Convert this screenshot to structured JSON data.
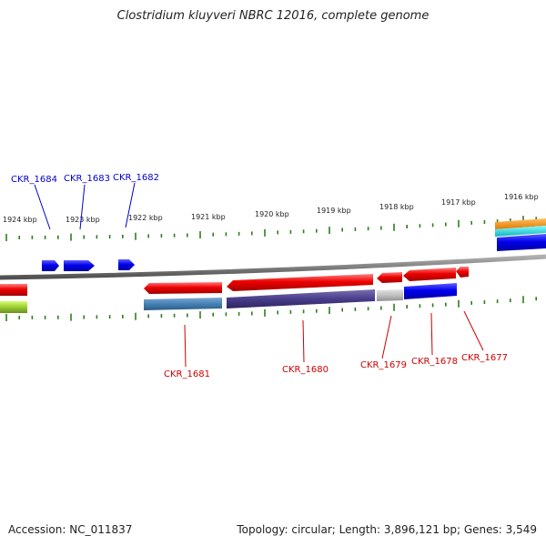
{
  "title": "Clostridium kluyveri NBRC 12016, complete genome",
  "footer": {
    "accession": "Accession: NC_011837",
    "summary": "Topology: circular; Length: 3,896,121 bp; Genes: 3,549"
  },
  "ruler_labels": [
    "1924 kbp",
    "1923 kbp",
    "1922 kbp",
    "1921 kbp",
    "1920 kbp",
    "1919 kbp",
    "1918 kbp",
    "1917 kbp",
    "1916 kbp"
  ],
  "forward_genes": [
    "CKR_1684",
    "CKR_1683",
    "CKR_1682"
  ],
  "reverse_genes": [
    "CKR_1681",
    "CKR_1680",
    "CKR_1679",
    "CKR_1678",
    "CKR_1677"
  ],
  "colors": {
    "backbone": "#808080",
    "tick": "#2e7d1e",
    "forward_gene": "#0000ee",
    "reverse_gene": "#ee0000",
    "label_forward": "#0000cc",
    "label_reverse": "#cc0000"
  }
}
